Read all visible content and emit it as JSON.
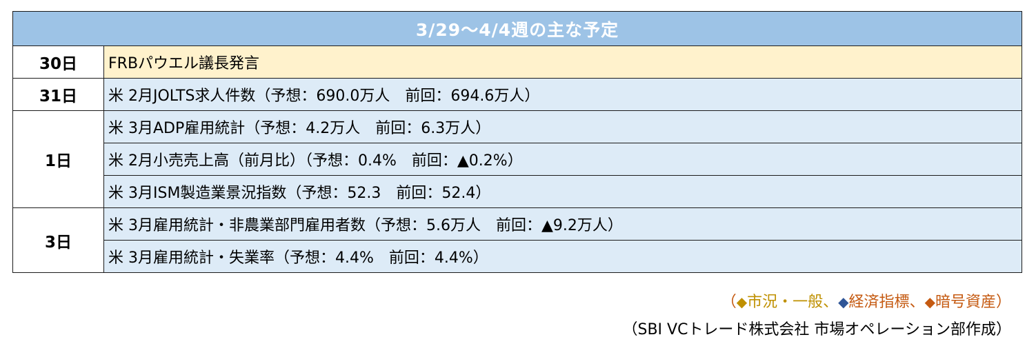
{
  "table": {
    "title": "3/29〜4/4週の主な予定",
    "rows": [
      {
        "date": "30日",
        "events": [
          "FRBパウエル議長発言"
        ]
      },
      {
        "date": "31日",
        "events": [
          "米 2月JOLTS求人件数（予想：690.0万人　前回：694.6万人）"
        ]
      },
      {
        "date": "1日",
        "events": [
          "米 3月ADP雇用統計（予想：4.2万人　前回：6.3万人）",
          "米 2月小売売上高（前月比）（予想：0.4%　前回：▲0.2%）",
          "米 3月ISM製造業景況指数（予想：52.3　前回：52.4）"
        ]
      },
      {
        "date": "3日",
        "events": [
          "米 3月雇用統計・非農業部門雇用者数（予想：5.6万人　前回：▲9.2万人）",
          "米 3月雇用統計・失業率（予想：4.4%　前回：4.4%）"
        ]
      }
    ]
  },
  "legend": {
    "open": "（",
    "close": "）",
    "separator": "、",
    "marker": "◆",
    "items": [
      {
        "label": "市況・一般",
        "color": "#bf9000"
      },
      {
        "label": "経済指標",
        "color": "#2f5597"
      },
      {
        "label": "暗号資産",
        "color": "#c55a11"
      }
    ]
  },
  "credit": "（SBI VCトレード株式会社 市場オペレーション部作成）",
  "colors": {
    "header_bg": "#9dc3e6",
    "general_row_bg": "#fff2cc",
    "indicator_row_bg": "#ddebf7"
  }
}
